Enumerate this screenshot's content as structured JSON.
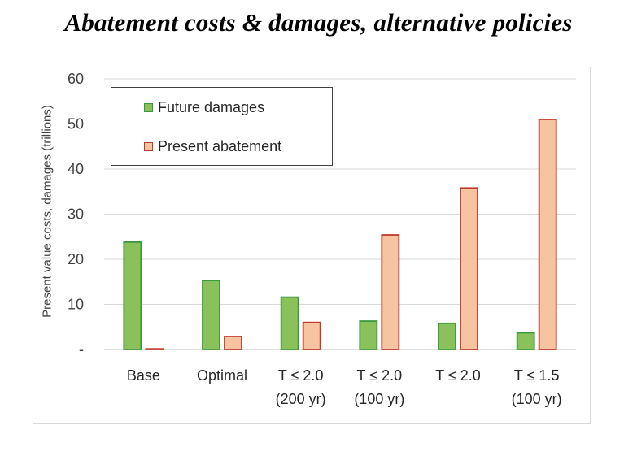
{
  "title": "Abatement costs & damages, alternative policies",
  "chart_data": {
    "type": "bar",
    "title": "Abatement costs & damages, alternative policies",
    "xlabel": "",
    "ylabel": "Present value costs, damages (trillions)",
    "ylim": [
      0,
      60
    ],
    "yticks": [
      "-",
      "10",
      "20",
      "30",
      "40",
      "50",
      "60"
    ],
    "grid": true,
    "legend_position": "top-left",
    "categories": [
      [
        "Base"
      ],
      [
        "Optimal"
      ],
      [
        "T ≤ 2.0",
        "(200 yr)"
      ],
      [
        "T ≤ 2.0",
        "(100 yr)"
      ],
      [
        "T ≤ 2.0"
      ],
      [
        "T ≤ 1.5",
        "(100 yr)"
      ]
    ],
    "series": [
      {
        "name": "Future damages",
        "fill": "#8bc15a",
        "stroke": "#3a9a3a",
        "values": [
          23.8,
          15.3,
          11.6,
          6.3,
          5.8,
          3.7
        ]
      },
      {
        "name": "Present abatement",
        "fill": "#f7c4a2",
        "stroke": "#c0392b",
        "values": [
          0.0,
          2.9,
          6.0,
          25.4,
          35.8,
          51.0
        ]
      }
    ]
  }
}
